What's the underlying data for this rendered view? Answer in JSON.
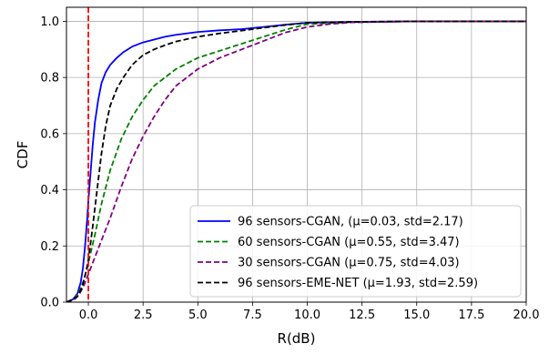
{
  "chart_data": {
    "type": "line",
    "title": "",
    "xlabel": "R(dB)",
    "ylabel": "CDF",
    "xlim": [
      -1,
      20
    ],
    "ylim": [
      0,
      1.05
    ],
    "xticks": [
      0,
      2.5,
      5,
      7.5,
      10,
      12.5,
      15,
      17.5,
      20
    ],
    "xtick_labels": [
      "0.0",
      "2.5",
      "5.0",
      "7.5",
      "10.0",
      "12.5",
      "15.0",
      "17.5",
      "20.0"
    ],
    "yticks": [
      0,
      0.2,
      0.4,
      0.6,
      0.8,
      1.0
    ],
    "ytick_labels": [
      "0.0",
      "0.2",
      "0.4",
      "0.6",
      "0.8",
      "1.0"
    ],
    "grid": true,
    "legend_position": "lower-right",
    "vline": {
      "x": 0,
      "color": "#ff0000",
      "style": "dashed"
    },
    "series": [
      {
        "name": "96 sensors-CGAN, (μ=0.03, std=2.17)",
        "color": "#0000ff",
        "style": "solid",
        "x": [
          -1,
          -0.7,
          -0.5,
          -0.35,
          -0.25,
          -0.15,
          -0.05,
          0,
          0.1,
          0.2,
          0.3,
          0.45,
          0.6,
          0.8,
          1.0,
          1.3,
          1.6,
          2.0,
          2.5,
          3.0,
          3.5,
          4.0,
          5.0,
          6.0,
          7.0,
          8.0,
          9.0,
          10.0,
          12.0,
          15.0,
          20.0
        ],
        "y": [
          0.0,
          0.01,
          0.03,
          0.07,
          0.12,
          0.2,
          0.3,
          0.36,
          0.46,
          0.56,
          0.64,
          0.72,
          0.78,
          0.82,
          0.845,
          0.87,
          0.89,
          0.91,
          0.925,
          0.935,
          0.945,
          0.952,
          0.962,
          0.968,
          0.972,
          0.98,
          0.988,
          0.995,
          0.998,
          1.0,
          1.0
        ]
      },
      {
        "name": "60 sensors-CGAN (μ=0.55, std=3.47)",
        "color": "#008000",
        "style": "dashed",
        "x": [
          -1,
          -0.8,
          -0.6,
          -0.4,
          -0.2,
          0,
          0.3,
          0.6,
          1.0,
          1.5,
          2.0,
          2.5,
          3.0,
          3.5,
          4.0,
          5.0,
          6.0,
          7.0,
          8.0,
          9.0,
          10.0,
          12.0,
          15.0,
          20.0
        ],
        "y": [
          0.0,
          0.005,
          0.015,
          0.04,
          0.08,
          0.14,
          0.24,
          0.35,
          0.47,
          0.58,
          0.66,
          0.72,
          0.77,
          0.8,
          0.83,
          0.87,
          0.895,
          0.92,
          0.945,
          0.97,
          0.99,
          0.997,
          1.0,
          1.0
        ]
      },
      {
        "name": "30 sensors-CGAN (μ=0.75, std=4.03)",
        "color": "#800080",
        "style": "dashed",
        "x": [
          -1,
          -0.8,
          -0.6,
          -0.4,
          -0.2,
          0,
          0.5,
          1.0,
          1.5,
          2.0,
          2.5,
          3.0,
          3.5,
          4.0,
          5.0,
          6.0,
          7.0,
          8.0,
          9.0,
          10.0,
          11.0,
          12.0,
          15.0,
          20.0
        ],
        "y": [
          0.0,
          0.005,
          0.012,
          0.03,
          0.06,
          0.1,
          0.2,
          0.3,
          0.41,
          0.51,
          0.59,
          0.66,
          0.72,
          0.77,
          0.83,
          0.87,
          0.9,
          0.93,
          0.96,
          0.98,
          0.99,
          0.996,
          1.0,
          1.0
        ]
      },
      {
        "name": "96 sensors-EME-NET (μ=1.93, std=2.59)",
        "color": "#000000",
        "style": "dashed",
        "x": [
          -1,
          -0.7,
          -0.5,
          -0.3,
          -0.1,
          0,
          0.2,
          0.4,
          0.6,
          0.8,
          1.0,
          1.3,
          1.6,
          2.0,
          2.5,
          3.0,
          3.5,
          4.0,
          5.0,
          6.0,
          7.0,
          8.0,
          9.0,
          10.0,
          12.0,
          15.0,
          20.0
        ],
        "y": [
          0.0,
          0.01,
          0.02,
          0.05,
          0.11,
          0.15,
          0.27,
          0.4,
          0.53,
          0.63,
          0.7,
          0.76,
          0.8,
          0.845,
          0.88,
          0.9,
          0.915,
          0.928,
          0.945,
          0.957,
          0.967,
          0.977,
          0.987,
          0.995,
          0.998,
          1.0,
          1.0
        ]
      }
    ]
  }
}
